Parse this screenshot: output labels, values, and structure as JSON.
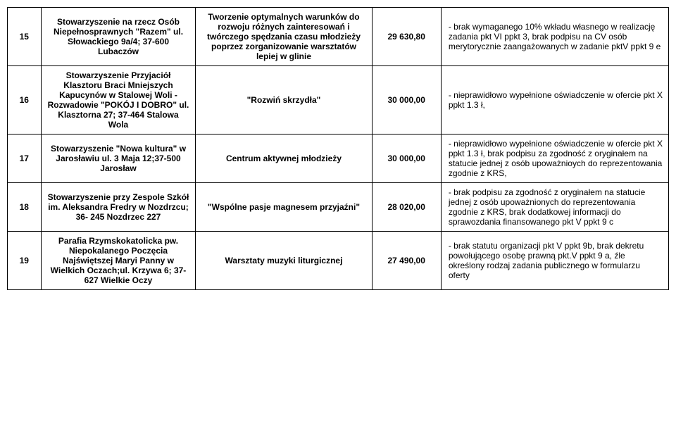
{
  "table": {
    "rows": [
      {
        "num": "15",
        "org": "Stowarzyszenie na rzecz Osób Niepełnosprawnych \"Razem\" ul. Słowackiego 9a/4; 37-600 Lubaczów",
        "task": "Tworzenie optymalnych warunków do rozwoju różnych zainteresowań i twórczego spędzania czasu młodzieży poprzez zorganizowanie warsztatów lepiej w glinie",
        "amount": "29 630,80",
        "notes": " - brak wymaganego 10% wkładu własnego w realizację zadania pkt VI ppkt 3, brak podpisu na CV osób merytorycznie zaangażowanych w zadanie pktV ppkt 9 e"
      },
      {
        "num": "16",
        "org": "Stowarzyszenie Przyjaciół Klasztoru Braci Mniejszych Kapucynów w Stalowej Woli -Rozwadowie \"POKÓJ I DOBRO\" ul. Klasztorna 27; 37-464 Stalowa Wola",
        "task": "\"Rozwiń skrzydła\"",
        "amount": "30 000,00",
        "notes": " - nieprawidłowo wypełnione oświadczenie w ofercie pkt X ppkt 1.3 ł,"
      },
      {
        "num": "17",
        "org": "Stowarzyszenie \"Nowa kultura\" w Jarosławiu ul. 3 Maja 12;37-500 Jarosław",
        "task": "Centrum aktywnej młodzieży",
        "amount": "30 000,00",
        "notes": " - nieprawidłowo wypełnione oświadczenie w ofercie pkt X ppkt 1.3 ł, brak podpisu  za zgodność z oryginałem na  statucie  jednej z osób upoważnioych do reprezentowania zgodnie z KRS,"
      },
      {
        "num": "18",
        "org": "Stowarzyszenie przy Zespole Szkół im. Aleksandra Fredry w Nozdrzcu; 36- 245 Nozdrzec 227",
        "task": "\"Wspólne pasje magnesem przyjaźni\"",
        "amount": "28 020,00",
        "notes": " - brak podpisu  za zgodność z oryginałem na statucie  jednej z osób upoważnionych do reprezentowania zgodnie z KRS, brak dodatkowej informacji do sprawozdania finansowanego pkt V ppkt 9 c"
      },
      {
        "num": "19",
        "org": "Parafia Rzymskokatolicka pw. Niepokalanego Poczęcia Najświętszej Maryi Panny w Wielkich Oczach;ul. Krzywa 6; 37-627 Wielkie Oczy",
        "task": "Warsztaty muzyki liturgicznej",
        "amount": "27 490,00",
        "notes": " - brak statutu organizacji pkt V ppkt 9b, brak dekretu powołującego osobę prawną pkt.V ppkt 9 a, źle określony rodzaj zadania publicznego w formularzu oferty"
      }
    ]
  }
}
